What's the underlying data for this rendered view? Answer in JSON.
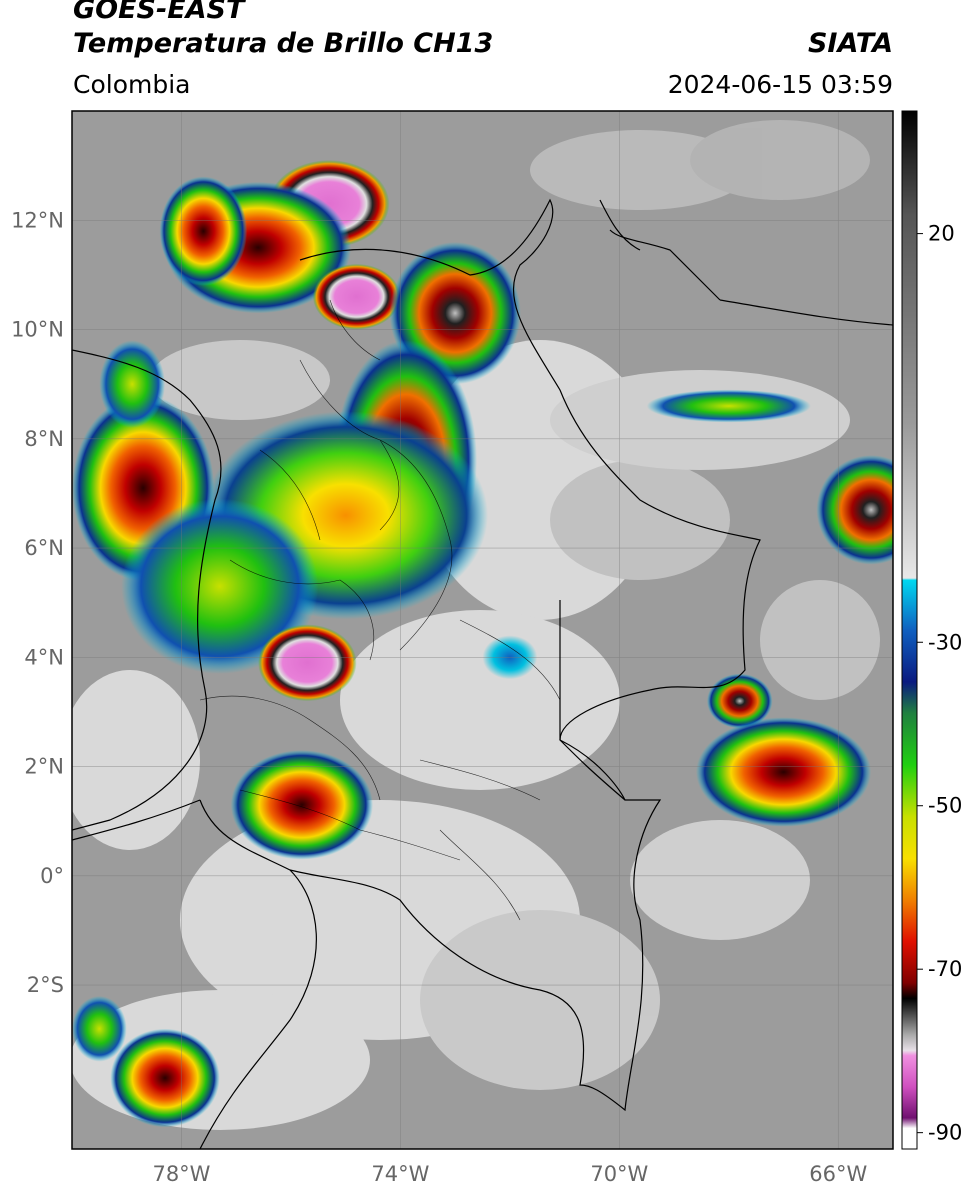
{
  "header": {
    "satellite": "GOES-EAST",
    "product": "Temperatura de Brillo CH13",
    "region": "Colombia",
    "brand": "SIATA",
    "datetime": "2024-06-15 03:59"
  },
  "map": {
    "lon_range": [
      -80,
      -65
    ],
    "lat_range": [
      -5,
      14
    ],
    "lat_ticks": [
      {
        "value": 12,
        "label": "12°N"
      },
      {
        "value": 10,
        "label": "10°N"
      },
      {
        "value": 8,
        "label": "8°N"
      },
      {
        "value": 6,
        "label": "6°N"
      },
      {
        "value": 4,
        "label": "4°N"
      },
      {
        "value": 2,
        "label": "2°N"
      },
      {
        "value": 0,
        "label": "0°"
      },
      {
        "value": -2,
        "label": "2°S"
      }
    ],
    "lon_ticks": [
      {
        "value": -78,
        "label": "78°W"
      },
      {
        "value": -74,
        "label": "74°W"
      },
      {
        "value": -70,
        "label": "70°W"
      },
      {
        "value": -66,
        "label": "66°W"
      }
    ],
    "grid": true
  },
  "colorbar": {
    "range": [
      -92,
      35
    ],
    "ticks": [
      {
        "value": 20,
        "label": "20"
      },
      {
        "value": -30,
        "label": "-30"
      },
      {
        "value": -50,
        "label": "-50"
      },
      {
        "value": -70,
        "label": "-70"
      },
      {
        "value": -90,
        "label": "-90"
      }
    ],
    "colors": {
      "warm_top": "#000000",
      "gray": "#8a8a8a",
      "light": "#eeeeee",
      "cyan": "#00c8e8",
      "blue": "#0a2a9a",
      "green": "#00c000",
      "yellow": "#f8e800",
      "orange": "#f08000",
      "red": "#d00000",
      "magenta": "#e070d0",
      "purple": "#7a1a80"
    }
  },
  "storms": [
    {
      "lon": -75.3,
      "lat": 12.3,
      "rx": 1.1,
      "ry": 0.8,
      "core": "magenta"
    },
    {
      "lon": -76.6,
      "lat": 11.5,
      "rx": 1.7,
      "ry": 1.2,
      "core": "red"
    },
    {
      "lon": -77.6,
      "lat": 11.8,
      "rx": 0.8,
      "ry": 1.0,
      "core": "red"
    },
    {
      "lon": -74.8,
      "lat": 10.6,
      "rx": 0.8,
      "ry": 0.6,
      "core": "magenta"
    },
    {
      "lon": -73.0,
      "lat": 10.3,
      "rx": 1.2,
      "ry": 1.3,
      "core": "black"
    },
    {
      "lon": -73.9,
      "lat": 7.6,
      "rx": 1.3,
      "ry": 2.2,
      "core": "black"
    },
    {
      "lon": -75.0,
      "lat": 6.6,
      "rx": 2.6,
      "ry": 1.9,
      "core": "yellow"
    },
    {
      "lon": -78.7,
      "lat": 7.1,
      "rx": 1.3,
      "ry": 1.7,
      "core": "red"
    },
    {
      "lon": -77.3,
      "lat": 5.3,
      "rx": 1.8,
      "ry": 1.6,
      "core": "green"
    },
    {
      "lon": -75.7,
      "lat": 3.9,
      "rx": 0.9,
      "ry": 0.7,
      "core": "magenta"
    },
    {
      "lon": -75.8,
      "lat": 1.3,
      "rx": 1.3,
      "ry": 1.0,
      "core": "red"
    },
    {
      "lon": -67.8,
      "lat": 3.2,
      "rx": 0.6,
      "ry": 0.5,
      "core": "black"
    },
    {
      "lon": -67.0,
      "lat": 1.9,
      "rx": 1.6,
      "ry": 1.0,
      "core": "red"
    },
    {
      "lon": -65.4,
      "lat": 6.7,
      "rx": 1.0,
      "ry": 1.0,
      "core": "black"
    },
    {
      "lon": -78.3,
      "lat": -3.7,
      "rx": 1.0,
      "ry": 0.9,
      "core": "red"
    },
    {
      "lon": -79.5,
      "lat": -2.8,
      "rx": 0.5,
      "ry": 0.6,
      "core": "green"
    },
    {
      "lon": -78.9,
      "lat": 9.0,
      "rx": 0.6,
      "ry": 0.8,
      "core": "green"
    },
    {
      "lon": -72.0,
      "lat": 4.0,
      "rx": 0.5,
      "ry": 0.4,
      "core": "cyan"
    },
    {
      "lon": -68.0,
      "lat": 8.6,
      "rx": 1.5,
      "ry": 0.3,
      "core": "green"
    }
  ]
}
